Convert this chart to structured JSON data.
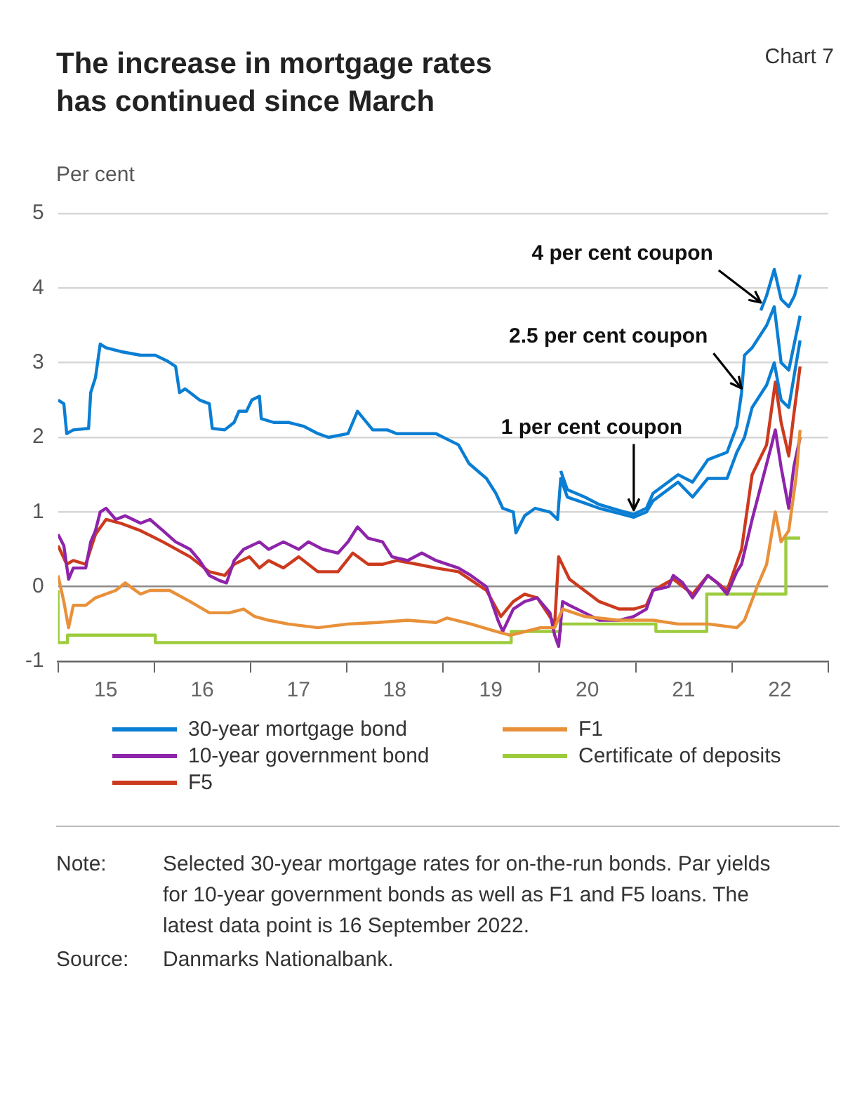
{
  "chart_data": {
    "type": "line",
    "title": "The increase in mortgage rates has continued since March",
    "subtitle": "Chart 7",
    "ylabel": "Per cent",
    "xlim": [
      "2015-01-01",
      "2023-01-01"
    ],
    "xticks": [
      {
        "value": "2015-01-01",
        "label": null
      },
      {
        "value": "2015-07-01",
        "label": "15"
      },
      {
        "value": "2016-01-01",
        "label": null
      },
      {
        "value": "2016-07-01",
        "label": "16"
      },
      {
        "value": "2017-01-01",
        "label": null
      },
      {
        "value": "2017-07-01",
        "label": "17"
      },
      {
        "value": "2018-01-01",
        "label": null
      },
      {
        "value": "2018-07-01",
        "label": "18"
      },
      {
        "value": "2019-01-01",
        "label": null
      },
      {
        "value": "2019-07-01",
        "label": "19"
      },
      {
        "value": "2020-01-01",
        "label": null
      },
      {
        "value": "2020-07-01",
        "label": "20"
      },
      {
        "value": "2021-01-01",
        "label": null
      },
      {
        "value": "2021-07-01",
        "label": "21"
      },
      {
        "value": "2022-01-01",
        "label": null
      },
      {
        "value": "2022-07-01",
        "label": "22"
      },
      {
        "value": "2023-01-01",
        "label": null
      }
    ],
    "ylim": [
      -1,
      5
    ],
    "yticks": [
      -1,
      0,
      1,
      2,
      3,
      4,
      5
    ],
    "grid": "y",
    "legend": "bottom",
    "marker": "none",
    "line_style": "solid",
    "series": [
      {
        "name": "30-year mortgage bond",
        "color": "#0a7ed3",
        "x": [
          "2015-01-01",
          "2015-01-23",
          "2015-02-03",
          "2015-02-28",
          "2015-04-27",
          "2015-05-05",
          "2015-05-23",
          "2015-06-10",
          "2015-07-02",
          "2015-08-26",
          "2015-11-10",
          "2016-01-05",
          "2016-02-21",
          "2016-03-22",
          "2016-04-06",
          "2016-04-27",
          "2016-06-21",
          "2016-07-28",
          "2016-08-08",
          "2016-09-24",
          "2016-10-30",
          "2016-11-17",
          "2016-12-16",
          "2017-01-05",
          "2017-02-03",
          "2017-02-10",
          "2017-03-29",
          "2017-05-23",
          "2017-07-20",
          "2017-09-13",
          "2017-10-23",
          "2018-01-05",
          "2018-02-10",
          "2018-04-09",
          "2018-06-03",
          "2018-07-09",
          "2018-09-24",
          "2018-12-05",
          "2019-02-28",
          "2019-04-09",
          "2019-06-14",
          "2019-07-20",
          "2019-08-15",
          "2019-09-24",
          "2019-10-04",
          "2019-11-06",
          "2019-12-16",
          "2020-02-10",
          "2020-03-10",
          "2020-03-22",
          "2020-04-16",
          "2020-06-21",
          "2020-08-15",
          "2020-10-30",
          "2020-12-24",
          "2021-02-10",
          "2021-03-07",
          "2021-06-10",
          "2021-08-04",
          "2021-10-01",
          "2021-12-13",
          "2022-01-19",
          "2022-02-17",
          "2022-03-18",
          "2022-05-12",
          "2022-06-10",
          "2022-07-06",
          "2022-08-04",
          "2022-09-16"
        ],
        "values": [
          2.5,
          2.45,
          2.05,
          2.1,
          2.12,
          2.6,
          2.8,
          3.25,
          3.2,
          3.15,
          3.1,
          3.1,
          3.02,
          2.95,
          2.6,
          2.65,
          2.5,
          2.45,
          2.12,
          2.1,
          2.2,
          2.35,
          2.35,
          2.5,
          2.55,
          2.25,
          2.2,
          2.2,
          2.15,
          2.05,
          2.0,
          2.05,
          2.35,
          2.1,
          2.1,
          2.05,
          2.05,
          2.05,
          1.9,
          1.65,
          1.45,
          1.25,
          1.05,
          1.0,
          0.72,
          0.95,
          1.05,
          1.0,
          0.9,
          1.45,
          1.2,
          1.12,
          1.05,
          0.98,
          0.93,
          1.0,
          1.15,
          1.4,
          1.2,
          1.45,
          1.45,
          1.8,
          2.0,
          2.4,
          2.7,
          3.0,
          2.5,
          2.4,
          3.3
        ]
      },
      {
        "name": "F1",
        "color": "#e8913a",
        "x": [
          "2015-01-01",
          "2015-01-23",
          "2015-02-10",
          "2015-02-28",
          "2015-04-16",
          "2015-05-23",
          "2015-08-08",
          "2015-09-13",
          "2015-11-10",
          "2015-12-16",
          "2016-02-28",
          "2016-05-16",
          "2016-07-28",
          "2016-10-12",
          "2016-12-05",
          "2017-01-16",
          "2017-03-10",
          "2017-05-23",
          "2017-09-13",
          "2018-01-05",
          "2018-04-27",
          "2018-08-19",
          "2018-12-05",
          "2019-01-16",
          "2019-04-16",
          "2019-07-20",
          "2019-09-13",
          "2020-01-05",
          "2020-02-28",
          "2020-03-29",
          "2020-06-21",
          "2020-10-30",
          "2021-03-07",
          "2021-06-10",
          "2021-10-01",
          "2022-01-19",
          "2022-02-17",
          "2022-04-06",
          "2022-05-12",
          "2022-06-14",
          "2022-07-06",
          "2022-08-04",
          "2022-09-02",
          "2022-09-16"
        ],
        "values": [
          0.15,
          -0.2,
          -0.55,
          -0.25,
          -0.25,
          -0.15,
          -0.05,
          0.05,
          -0.1,
          -0.05,
          -0.05,
          -0.2,
          -0.35,
          -0.35,
          -0.3,
          -0.4,
          -0.45,
          -0.5,
          -0.55,
          -0.5,
          -0.48,
          -0.45,
          -0.48,
          -0.42,
          -0.5,
          -0.6,
          -0.65,
          -0.55,
          -0.55,
          -0.3,
          -0.4,
          -0.45,
          -0.45,
          -0.5,
          -0.5,
          -0.55,
          -0.45,
          0.0,
          0.3,
          1.0,
          0.6,
          0.75,
          1.5,
          2.1
        ]
      },
      {
        "name": "10-year government bond",
        "color": "#8e24aa",
        "x": [
          "2015-01-01",
          "2015-01-23",
          "2015-02-10",
          "2015-02-28",
          "2015-04-16",
          "2015-05-05",
          "2015-05-23",
          "2015-06-10",
          "2015-07-02",
          "2015-08-08",
          "2015-09-13",
          "2015-11-10",
          "2015-12-16",
          "2016-02-03",
          "2016-03-22",
          "2016-05-16",
          "2016-06-21",
          "2016-07-28",
          "2016-09-06",
          "2016-10-01",
          "2016-10-30",
          "2016-12-05",
          "2017-02-03",
          "2017-03-10",
          "2017-05-05",
          "2017-07-02",
          "2017-08-08",
          "2017-10-01",
          "2017-11-28",
          "2018-01-05",
          "2018-02-10",
          "2018-03-22",
          "2018-05-16",
          "2018-06-21",
          "2018-08-19",
          "2018-10-12",
          "2018-12-05",
          "2019-02-28",
          "2019-04-16",
          "2019-06-14",
          "2019-07-28",
          "2019-08-15",
          "2019-09-24",
          "2019-11-06",
          "2019-12-24",
          "2020-02-10",
          "2020-02-28",
          "2020-03-14",
          "2020-03-29",
          "2020-04-24",
          "2020-06-21",
          "2020-08-15",
          "2020-10-30",
          "2020-12-24",
          "2021-02-10",
          "2021-03-07",
          "2021-05-05",
          "2021-05-23",
          "2021-06-28",
          "2021-08-04",
          "2021-10-01",
          "2021-11-06",
          "2021-12-13",
          "2022-01-19",
          "2022-02-06",
          "2022-03-18",
          "2022-04-24",
          "2022-05-31",
          "2022-06-14",
          "2022-07-06",
          "2022-08-04",
          "2022-08-23",
          "2022-09-16"
        ],
        "values": [
          0.7,
          0.55,
          0.1,
          0.25,
          0.25,
          0.6,
          0.75,
          1.0,
          1.05,
          0.9,
          0.95,
          0.85,
          0.9,
          0.75,
          0.6,
          0.5,
          0.35,
          0.15,
          0.08,
          0.05,
          0.35,
          0.5,
          0.6,
          0.5,
          0.6,
          0.5,
          0.6,
          0.5,
          0.45,
          0.6,
          0.8,
          0.65,
          0.6,
          0.4,
          0.35,
          0.45,
          0.35,
          0.25,
          0.15,
          0.0,
          -0.45,
          -0.6,
          -0.3,
          -0.2,
          -0.15,
          -0.35,
          -0.65,
          -0.8,
          -0.2,
          -0.25,
          -0.35,
          -0.45,
          -0.45,
          -0.4,
          -0.3,
          -0.05,
          0.0,
          0.15,
          0.05,
          -0.15,
          0.15,
          0.05,
          -0.1,
          0.2,
          0.3,
          0.9,
          1.4,
          1.9,
          2.1,
          1.6,
          1.05,
          1.6,
          2.0
        ]
      },
      {
        "name": "Certificate of deposits",
        "color": "#9ccc3c",
        "type": "step",
        "x": [
          "2015-01-01",
          "2015-02-06",
          "2016-01-05",
          "2019-09-16",
          "2020-03-22",
          "2021-03-18",
          "2021-09-27",
          "2022-07-24",
          "2022-09-09",
          "2022-09-16"
        ],
        "values": [
          -0.05,
          -0.75,
          -0.65,
          -0.75,
          -0.6,
          -0.5,
          -0.6,
          -0.1,
          0.65,
          0.65
        ]
      },
      {
        "name": "F5",
        "color": "#cc3a1e",
        "x": [
          "2015-01-01",
          "2015-02-03",
          "2015-02-28",
          "2015-04-16",
          "2015-05-23",
          "2015-07-02",
          "2015-08-26",
          "2015-11-10",
          "2016-02-03",
          "2016-05-16",
          "2016-07-28",
          "2016-09-24",
          "2016-10-30",
          "2016-12-27",
          "2017-02-03",
          "2017-03-10",
          "2017-05-05",
          "2017-07-02",
          "2017-09-13",
          "2017-11-28",
          "2018-01-23",
          "2018-03-22",
          "2018-05-16",
          "2018-07-09",
          "2018-09-24",
          "2018-12-05",
          "2019-02-28",
          "2019-06-14",
          "2019-08-08",
          "2019-09-24",
          "2019-11-06",
          "2019-12-24",
          "2020-02-28",
          "2020-03-14",
          "2020-04-24",
          "2020-08-15",
          "2020-10-30",
          "2020-12-24",
          "2021-02-10",
          "2021-03-07",
          "2021-05-23",
          "2021-08-04",
          "2021-10-01",
          "2021-12-13",
          "2022-02-06",
          "2022-03-18",
          "2022-05-12",
          "2022-06-14",
          "2022-07-06",
          "2022-08-04",
          "2022-08-23",
          "2022-09-16"
        ],
        "values": [
          0.55,
          0.3,
          0.35,
          0.3,
          0.7,
          0.9,
          0.85,
          0.75,
          0.6,
          0.4,
          0.2,
          0.15,
          0.3,
          0.4,
          0.25,
          0.35,
          0.25,
          0.4,
          0.2,
          0.2,
          0.45,
          0.3,
          0.3,
          0.35,
          0.3,
          0.25,
          0.2,
          -0.05,
          -0.4,
          -0.2,
          -0.1,
          -0.15,
          -0.5,
          0.4,
          0.1,
          -0.2,
          -0.3,
          -0.3,
          -0.25,
          -0.05,
          0.1,
          -0.1,
          0.15,
          -0.05,
          0.5,
          1.5,
          1.9,
          2.74,
          2.2,
          1.75,
          2.3,
          2.95
        ]
      },
      {
        "color": "#0a7ed3",
        "x": [
          "2020-03-22",
          "2020-04-16",
          "2020-06-21",
          "2020-08-15",
          "2020-10-30",
          "2020-12-24",
          "2021-02-10",
          "2021-03-07",
          "2021-06-10",
          "2021-08-04",
          "2021-10-01",
          "2021-12-13",
          "2022-01-19",
          "2022-02-06",
          "2022-02-17",
          "2022-03-18",
          "2022-05-12",
          "2022-06-10",
          "2022-07-06",
          "2022-08-04",
          "2022-09-16"
        ],
        "values": [
          1.55,
          1.3,
          1.2,
          1.1,
          1.02,
          0.97,
          1.05,
          1.25,
          1.5,
          1.4,
          1.7,
          1.8,
          2.15,
          2.6,
          3.1,
          3.2,
          3.5,
          3.75,
          3.0,
          2.9,
          3.63
        ]
      },
      {
        "color": "#0a7ed3",
        "x": [
          "2022-04-20",
          "2022-05-12",
          "2022-06-10",
          "2022-07-06",
          "2022-08-04",
          "2022-08-26",
          "2022-09-16"
        ],
        "values": [
          3.7,
          3.9,
          4.25,
          3.85,
          3.75,
          3.9,
          4.18
        ]
      }
    ],
    "annotations": [
      {
        "text": "4 per cent coupon",
        "x": "2022-04-20",
        "y": 3.75
      },
      {
        "text": "2.5 per cent coupon",
        "x": "2022-02-06",
        "y": 2.6
      },
      {
        "text": "1 per cent coupon",
        "x": "2020-12-24",
        "y": 0.97
      },
      "Note: Selected 30-year mortgage rates for on-the-run bonds. Par yields for 10-year government bonds as well as F1 and F5 loans. The latest data point is 16 September 2022.",
      "Source: Danmarks Nationalbank."
    ]
  }
}
